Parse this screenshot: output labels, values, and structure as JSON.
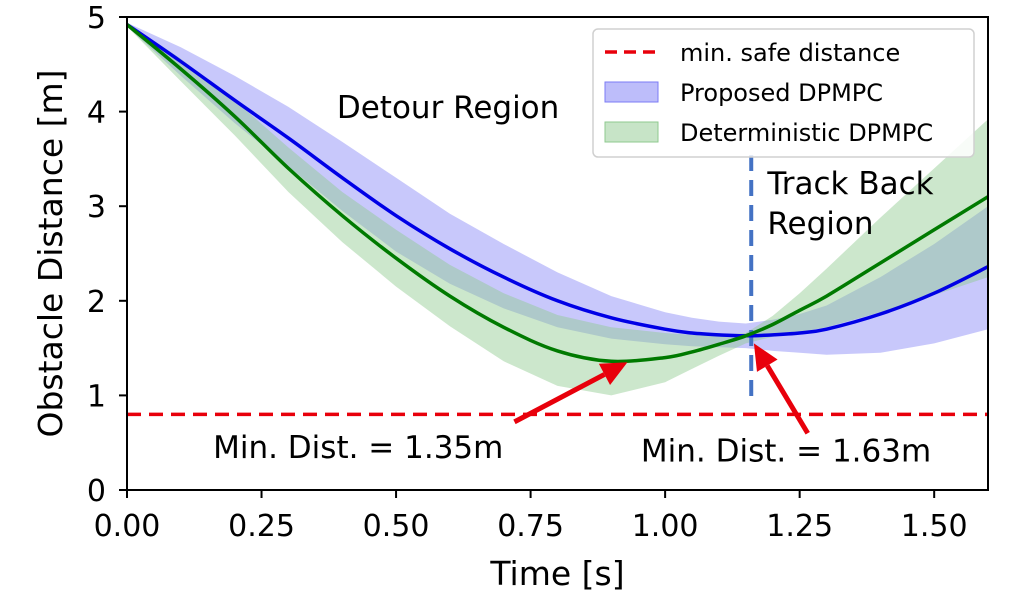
{
  "chart_data": {
    "type": "line",
    "xlabel": "Time [s]",
    "ylabel": "Obstacle Distance [m]",
    "xlim": [
      0,
      1.6
    ],
    "ylim": [
      0,
      5
    ],
    "xticks": [
      "0.00",
      "0.25",
      "0.50",
      "0.75",
      "1.00",
      "1.25",
      "1.50"
    ],
    "yticks": [
      "0",
      "1",
      "2",
      "3",
      "4",
      "5"
    ],
    "grid": false,
    "legend_position": "top-right",
    "legend": [
      {
        "label": "min. safe distance",
        "kind": "dashed-line",
        "color": "#e8000b"
      },
      {
        "label": "Proposed DPMPC",
        "kind": "band",
        "color": "#7b7bf5"
      },
      {
        "label": "Deterministic DPMPC",
        "kind": "band",
        "color": "#8fca8f"
      }
    ],
    "safe_distance": {
      "value": 0.8,
      "color": "#e8000b"
    },
    "series": [
      {
        "name": "Proposed DPMPC",
        "color": "#0000e6",
        "band_color": "#7b7bf5",
        "x": [
          0.0,
          0.1,
          0.2,
          0.3,
          0.4,
          0.5,
          0.6,
          0.7,
          0.8,
          0.9,
          1.0,
          1.05,
          1.1,
          1.15,
          1.2,
          1.25,
          1.3,
          1.4,
          1.5,
          1.6
        ],
        "y": [
          4.92,
          4.53,
          4.12,
          3.72,
          3.3,
          2.9,
          2.55,
          2.25,
          2.0,
          1.82,
          1.7,
          1.66,
          1.64,
          1.63,
          1.64,
          1.66,
          1.7,
          1.86,
          2.08,
          2.36
        ],
        "upper": [
          4.94,
          4.68,
          4.38,
          4.05,
          3.68,
          3.3,
          2.92,
          2.6,
          2.3,
          2.05,
          1.88,
          1.82,
          1.78,
          1.76,
          1.8,
          1.86,
          1.95,
          2.25,
          2.6,
          3.0
        ],
        "lower": [
          4.9,
          4.38,
          3.88,
          3.42,
          2.95,
          2.52,
          2.18,
          1.92,
          1.72,
          1.6,
          1.54,
          1.52,
          1.51,
          1.5,
          1.47,
          1.45,
          1.43,
          1.45,
          1.55,
          1.7
        ]
      },
      {
        "name": "Deterministic DPMPC",
        "color": "#007a00",
        "band_color": "#8fca8f",
        "x": [
          0.0,
          0.1,
          0.2,
          0.3,
          0.4,
          0.5,
          0.6,
          0.7,
          0.8,
          0.9,
          1.0,
          1.05,
          1.1,
          1.15,
          1.2,
          1.25,
          1.3,
          1.4,
          1.5,
          1.6
        ],
        "y": [
          4.92,
          4.45,
          3.95,
          3.4,
          2.9,
          2.45,
          2.05,
          1.72,
          1.47,
          1.36,
          1.4,
          1.46,
          1.54,
          1.63,
          1.75,
          1.9,
          2.05,
          2.4,
          2.75,
          3.1
        ],
        "upper": [
          4.94,
          4.56,
          4.12,
          3.62,
          3.15,
          2.75,
          2.38,
          2.08,
          1.85,
          1.72,
          1.66,
          1.64,
          1.64,
          1.66,
          1.84,
          2.08,
          2.34,
          2.88,
          3.4,
          3.92
        ],
        "lower": [
          4.9,
          4.32,
          3.75,
          3.15,
          2.62,
          2.15,
          1.73,
          1.36,
          1.1,
          1.0,
          1.14,
          1.28,
          1.42,
          1.55,
          1.62,
          1.67,
          1.72,
          1.88,
          2.06,
          2.25
        ]
      }
    ],
    "boundary": {
      "x": 1.16,
      "color": "#4472c4"
    },
    "region_labels": [
      {
        "lines": [
          "Detour Region"
        ],
        "x": 0.39,
        "y": 3.93
      },
      {
        "lines": [
          "Track Back",
          "Region"
        ],
        "x": 1.19,
        "y": 3.13
      }
    ],
    "annotations": [
      {
        "text": "Min. Dist. = 1.35m",
        "point": [
          0.93,
          1.35
        ],
        "tail": [
          0.72,
          0.72
        ],
        "text_x": 0.16,
        "text_y": 0.34
      },
      {
        "text": "Min. Dist. = 1.63m",
        "point": [
          1.165,
          1.55
        ],
        "tail": [
          1.265,
          0.6
        ],
        "text_x": 0.955,
        "text_y": 0.3
      }
    ]
  }
}
